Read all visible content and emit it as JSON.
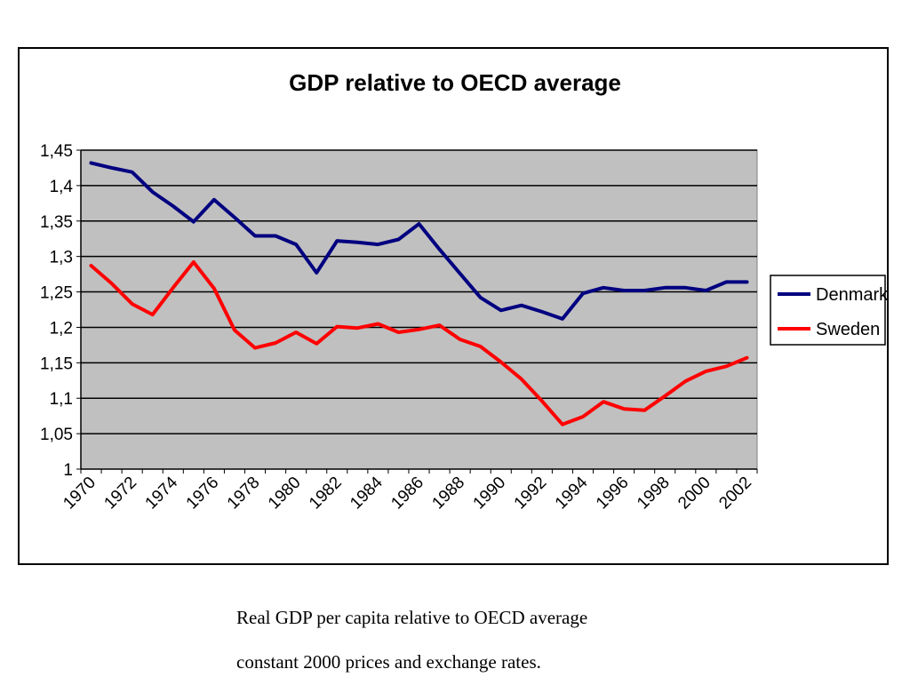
{
  "chart_data": {
    "type": "line",
    "title": "GDP relative to OECD average",
    "xlabel": "",
    "ylabel": "",
    "x": [
      1970,
      1971,
      1972,
      1973,
      1974,
      1975,
      1976,
      1977,
      1978,
      1979,
      1980,
      1981,
      1982,
      1983,
      1984,
      1985,
      1986,
      1987,
      1988,
      1989,
      1990,
      1991,
      1992,
      1993,
      1994,
      1995,
      1996,
      1997,
      1998,
      1999,
      2000,
      2001,
      2002
    ],
    "x_tick_labels": [
      "1970",
      "1972",
      "1974",
      "1976",
      "1978",
      "1980",
      "1982",
      "1984",
      "1986",
      "1988",
      "1990",
      "1992",
      "1994",
      "1996",
      "1998",
      "2000",
      "2002"
    ],
    "y_tick_labels": [
      "1",
      "1,05",
      "1,1",
      "1,15",
      "1,2",
      "1,25",
      "1,3",
      "1,35",
      "1,4",
      "1,45"
    ],
    "ylim": [
      1,
      1.45
    ],
    "grid": "horizontal",
    "plot_background": "#c0c0c0",
    "legend_position": "right",
    "series": [
      {
        "name": "Denmark",
        "color": "#000080",
        "values": [
          1.432,
          1.425,
          1.419,
          1.391,
          1.371,
          1.349,
          1.38,
          1.355,
          1.329,
          1.329,
          1.317,
          1.277,
          1.322,
          1.32,
          1.317,
          1.324,
          1.346,
          1.31,
          1.276,
          1.242,
          1.224,
          1.231,
          1.222,
          1.212,
          1.248,
          1.256,
          1.252,
          1.252,
          1.256,
          1.256,
          1.252,
          1.264,
          1.264
        ]
      },
      {
        "name": "Sweden",
        "color": "#ff0000",
        "values": [
          1.287,
          1.262,
          1.233,
          1.218,
          1.256,
          1.292,
          1.255,
          1.196,
          1.171,
          1.178,
          1.193,
          1.177,
          1.201,
          1.199,
          1.205,
          1.193,
          1.197,
          1.203,
          1.183,
          1.173,
          1.151,
          1.127,
          1.096,
          1.063,
          1.074,
          1.095,
          1.085,
          1.083,
          1.103,
          1.124,
          1.138,
          1.145,
          1.157
        ]
      }
    ]
  },
  "caption": {
    "line1": "Real GDP per capita relative to OECD average",
    "line2": "constant 2000 prices and exchange rates."
  }
}
